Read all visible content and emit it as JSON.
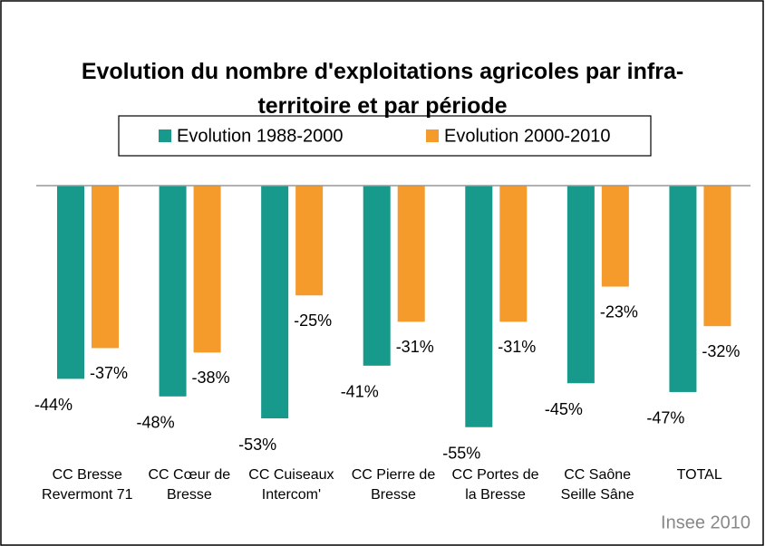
{
  "chart_data": {
    "type": "bar",
    "title": "Evolution du nombre d'exploitations agricoles par infra-territoire et par période",
    "categories": [
      "CC Bresse Revermont 71",
      "CC Cœur de Bresse",
      "CC Cuiseaux Intercom'",
      "CC Pierre de Bresse",
      "CC Portes de la Bresse",
      "CC Saône Seille Sâne",
      "TOTAL"
    ],
    "series": [
      {
        "name": "Evolution 1988-2000",
        "color": "#17998b",
        "values": [
          -44,
          -48,
          -53,
          -41,
          -55,
          -45,
          -47
        ],
        "value_labels": [
          "-44%",
          "-48%",
          "-53%",
          "-41%",
          "-55%",
          "-45%",
          "-47%"
        ]
      },
      {
        "name": "Evolution 2000-2010",
        "color": "#f49b2c",
        "values": [
          -37,
          -38,
          -25,
          -31,
          -31,
          -23,
          -32
        ],
        "value_labels": [
          "-37%",
          "-38%",
          "-25%",
          "-31%",
          "-31%",
          "-23%",
          "-32%"
        ]
      }
    ],
    "ylim": [
      -60,
      0
    ],
    "source": "Insee 2010"
  }
}
